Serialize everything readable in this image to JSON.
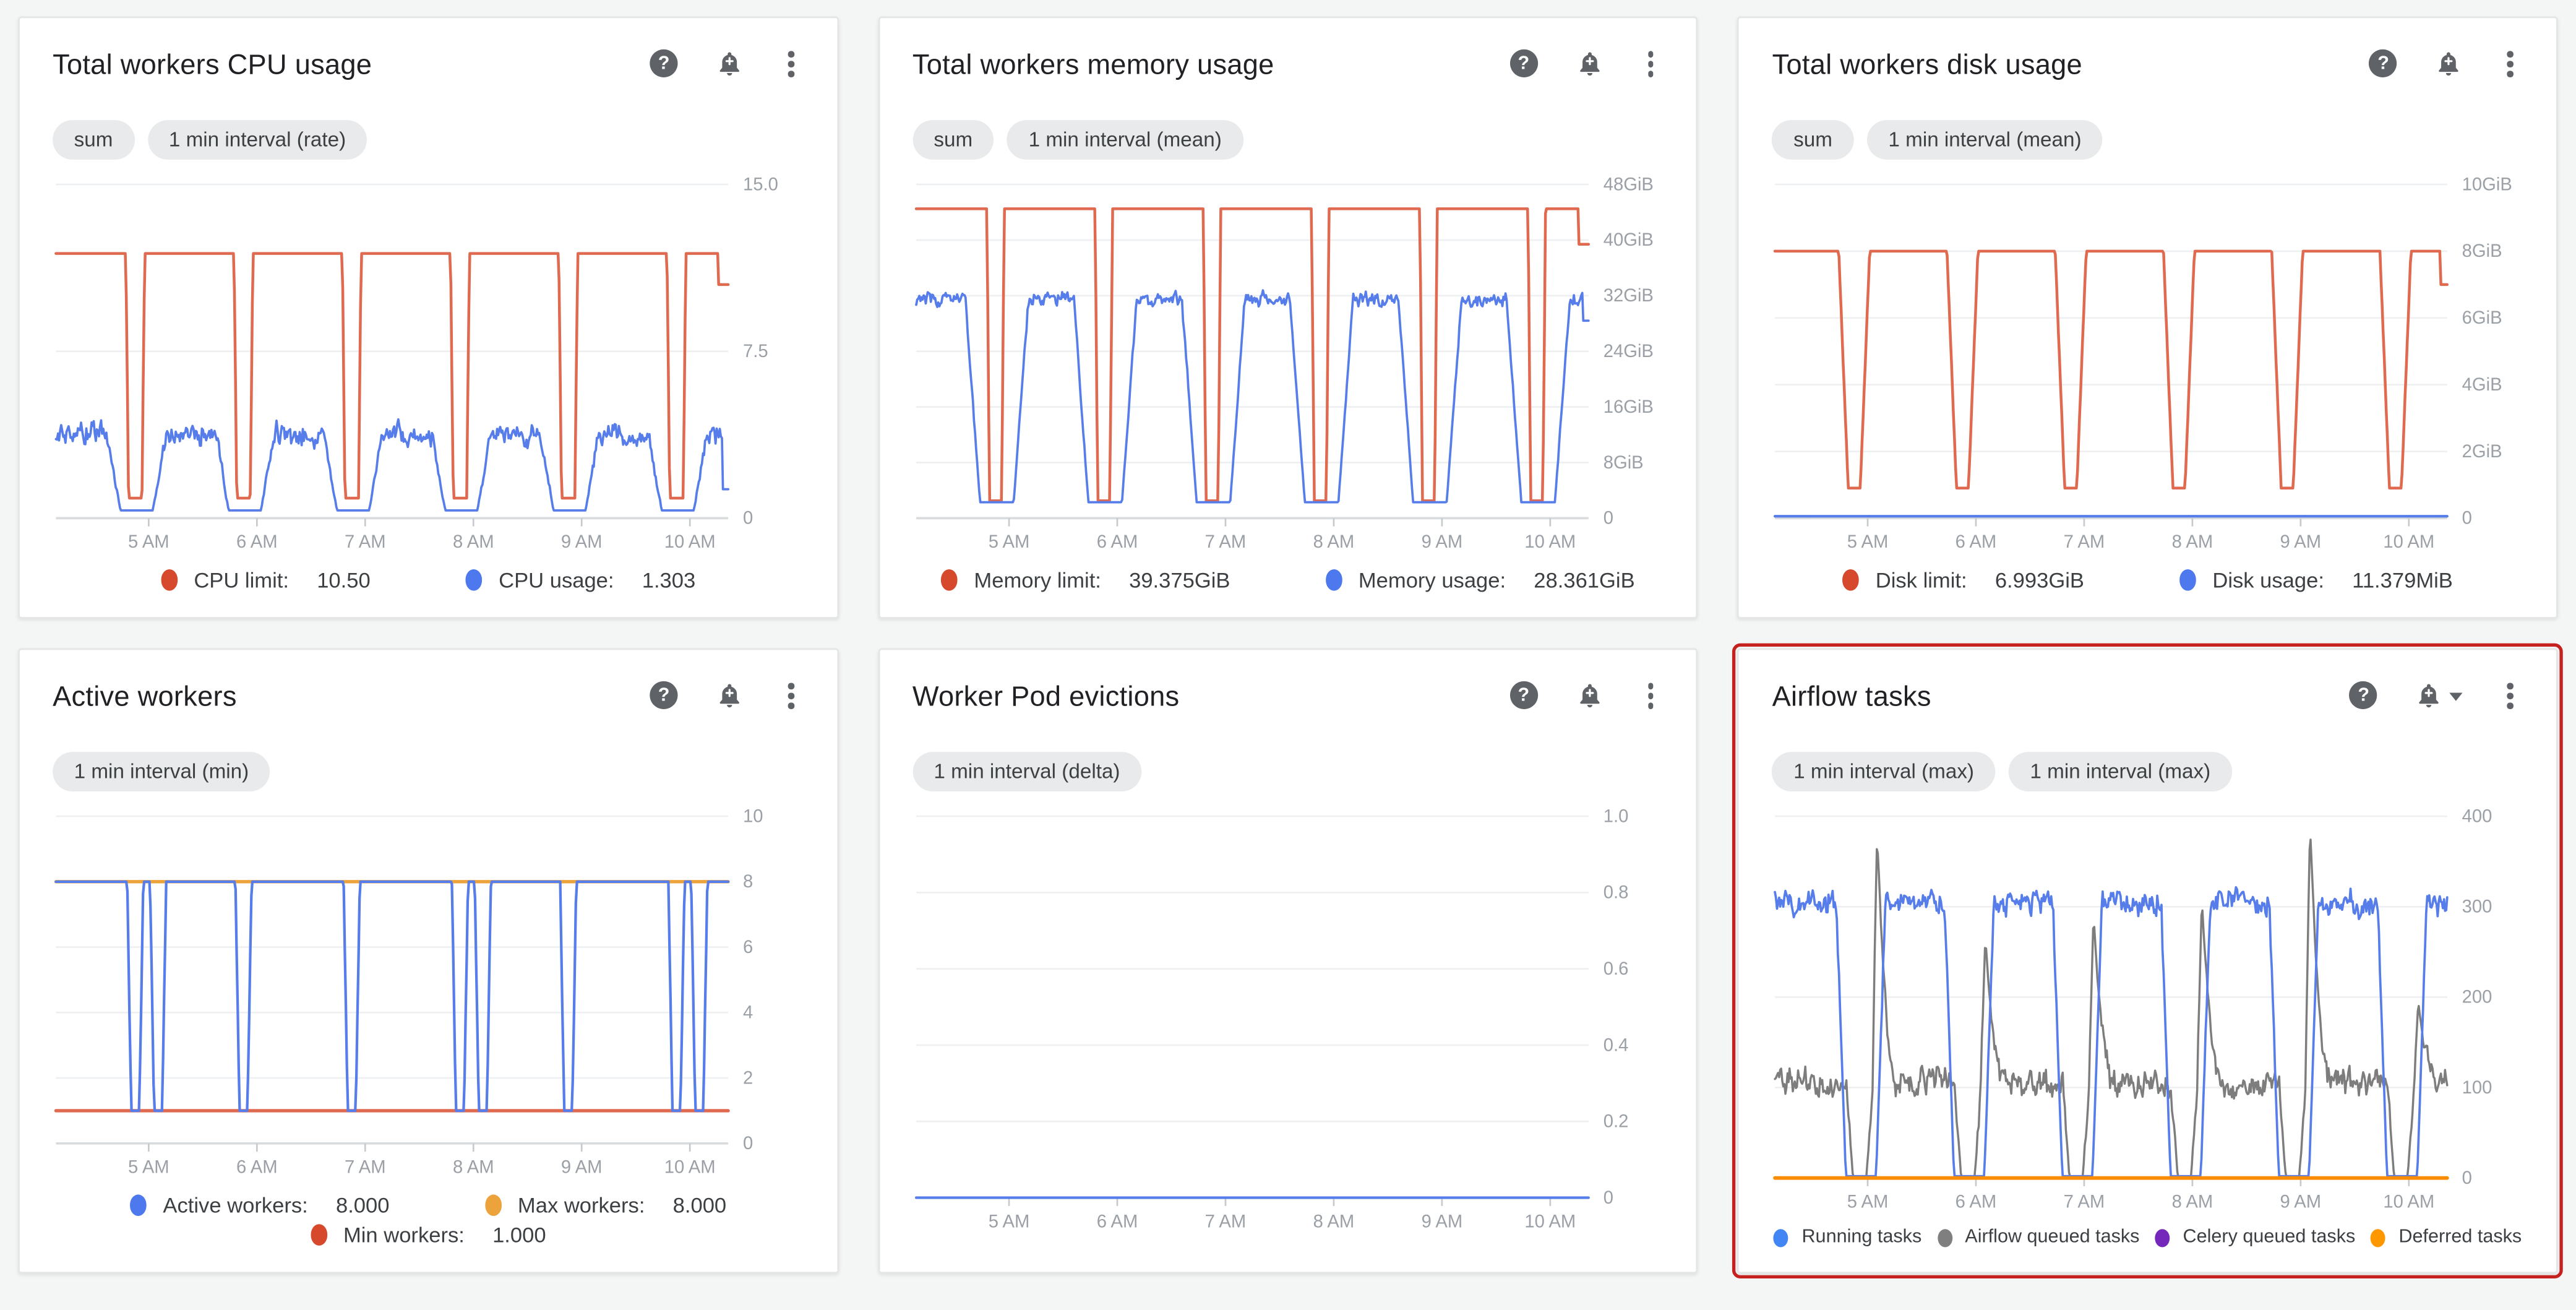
{
  "page": {
    "background": "#f4f5f5",
    "highlight_border_color": "#c5221f"
  },
  "x_axis": {
    "ticks": [
      {
        "f": 0.138,
        "label": "5 AM"
      },
      {
        "f": 0.299,
        "label": "6 AM"
      },
      {
        "f": 0.46,
        "label": "7 AM"
      },
      {
        "f": 0.621,
        "label": "8 AM"
      },
      {
        "f": 0.782,
        "label": "9 AM"
      },
      {
        "f": 0.943,
        "label": "10 AM"
      }
    ]
  },
  "cards": [
    {
      "title": "Total workers CPU usage",
      "chips": [
        "sum",
        "1 min interval (rate)"
      ],
      "header_icons": [
        "help-icon",
        "alert-bell-icon",
        "kebab-menu-icon"
      ],
      "bell_caret": false,
      "highlighted": false,
      "chart_index": 0,
      "legend_rows": [
        [
          {
            "label": "CPU limit:",
            "value": "10.50",
            "color": "#d6492c"
          },
          {
            "label": "CPU usage:",
            "value": "1.303",
            "color": "#4e79ee"
          }
        ]
      ]
    },
    {
      "title": "Total workers memory usage",
      "chips": [
        "sum",
        "1 min interval (mean)"
      ],
      "header_icons": [
        "help-icon",
        "alert-bell-icon",
        "kebab-menu-icon"
      ],
      "bell_caret": false,
      "highlighted": false,
      "chart_index": 1,
      "legend_rows": [
        [
          {
            "label": "Memory limit:",
            "value": "39.375GiB",
            "color": "#d6492c"
          },
          {
            "label": "Memory usage:",
            "value": "28.361GiB",
            "color": "#4e79ee"
          }
        ]
      ]
    },
    {
      "title": "Total workers disk usage",
      "chips": [
        "sum",
        "1 min interval (mean)"
      ],
      "header_icons": [
        "help-icon",
        "alert-bell-icon",
        "kebab-menu-icon"
      ],
      "bell_caret": false,
      "highlighted": false,
      "chart_index": 2,
      "legend_rows": [
        [
          {
            "label": "Disk limit:",
            "value": "6.993GiB",
            "color": "#d6492c"
          },
          {
            "label": "Disk usage:",
            "value": "11.379MiB",
            "color": "#4e79ee"
          }
        ]
      ]
    },
    {
      "title": "Active workers",
      "chips": [
        "1 min interval (min)"
      ],
      "header_icons": [
        "help-icon",
        "alert-bell-icon",
        "kebab-menu-icon"
      ],
      "bell_caret": false,
      "highlighted": false,
      "chart_index": 3,
      "legend_rows": [
        [
          {
            "label": "Active workers:",
            "value": "8.000",
            "color": "#4e79ee"
          },
          {
            "label": "Max workers:",
            "value": "8.000",
            "color": "#eda33c"
          }
        ],
        [
          {
            "label": "Min workers:",
            "value": "1.000",
            "color": "#d6492c"
          }
        ]
      ]
    },
    {
      "title": "Worker Pod evictions",
      "chips": [
        "1 min interval (delta)"
      ],
      "header_icons": [
        "help-icon",
        "alert-bell-icon",
        "kebab-menu-icon"
      ],
      "bell_caret": false,
      "highlighted": false,
      "chart_index": 4,
      "legend_rows": []
    },
    {
      "title": "Airflow tasks",
      "chips": [
        "1 min interval (max)",
        "1 min interval (max)"
      ],
      "header_icons": [
        "help-icon",
        "alert-bell-icon",
        "caret-down-icon",
        "kebab-menu-icon"
      ],
      "bell_caret": true,
      "highlighted": true,
      "chart_index": 5,
      "legend_rows": [
        [
          {
            "label": "Running tasks",
            "value": "",
            "color": "#4285f4"
          },
          {
            "label": "Airflow queued tasks",
            "value": "",
            "color": "#7f7f7f"
          },
          {
            "label": "Celery queued tasks",
            "value": "",
            "color": "#7627bb"
          },
          {
            "label": "Deferred tasks",
            "value": "",
            "color": "#ff9800"
          }
        ]
      ]
    }
  ],
  "chart_data": [
    {
      "type": "line",
      "title": "Total workers CPU usage",
      "ylim": [
        0,
        15
      ],
      "y_ticks": [
        {
          "v": 15,
          "label": "15.0"
        },
        {
          "v": 7.5,
          "label": "7.5"
        },
        {
          "v": 0,
          "label": "0"
        }
      ],
      "x_tick_labels": [
        "5 AM",
        "6 AM",
        "7 AM",
        "8 AM",
        "9 AM",
        "10 AM"
      ],
      "grid": true,
      "legend_position": "bottom",
      "series": [
        {
          "name": "CPU limit",
          "color": "#e06a50",
          "width": 1.7,
          "current": 10.5,
          "pattern": {
            "base": 11.9,
            "dips": [
              0.118,
              0.279,
              0.44,
              0.601,
              0.762,
              0.923
            ],
            "dipWidth": 0.02,
            "dipSlope": 0.004,
            "dipLow": 0.9,
            "end": {
              "at": 0.985,
              "value": 10.5
            }
          }
        },
        {
          "name": "CPU usage",
          "color": "#567de9",
          "width": 1.4,
          "current": 1.303,
          "pattern": {
            "base": 3.8,
            "noise": 0.38,
            "jitter": 0.22,
            "seed": 11,
            "dips": [
              0.12,
              0.281,
              0.442,
              0.603,
              0.764,
              0.925
            ],
            "dipWidth": 0.048,
            "dipSlope": 0.02,
            "dipLow": 0.35,
            "end": {
              "at": 0.992,
              "value": 1.3
            }
          }
        }
      ]
    },
    {
      "type": "line",
      "title": "Total workers memory usage",
      "ylim": [
        0,
        48
      ],
      "y_ticks": [
        {
          "v": 48,
          "label": "48GiB"
        },
        {
          "v": 40,
          "label": "40GiB"
        },
        {
          "v": 32,
          "label": "32GiB"
        },
        {
          "v": 24,
          "label": "24GiB"
        },
        {
          "v": 16,
          "label": "16GiB"
        },
        {
          "v": 8,
          "label": "8GiB"
        },
        {
          "v": 0,
          "label": "0"
        }
      ],
      "x_tick_labels": [
        "5 AM",
        "6 AM",
        "7 AM",
        "8 AM",
        "9 AM",
        "10 AM"
      ],
      "grid": true,
      "legend_position": "bottom",
      "series": [
        {
          "name": "Memory limit",
          "color": "#e06a50",
          "width": 1.7,
          "current": "39.375GiB",
          "pattern": {
            "base": 44.5,
            "dips": [
              0.118,
              0.279,
              0.44,
              0.601,
              0.762,
              0.923
            ],
            "dipWidth": 0.018,
            "dipSlope": 0.004,
            "dipLow": 2.5,
            "end": {
              "at": 0.985,
              "value": 39.4
            }
          }
        },
        {
          "name": "Memory usage",
          "color": "#567de9",
          "width": 1.4,
          "current": "28.361GiB",
          "pattern": {
            "base": 31.5,
            "noise": 0.8,
            "jitter": 0.5,
            "seed": 22,
            "dips": [
              0.12,
              0.281,
              0.442,
              0.603,
              0.764,
              0.925
            ],
            "dipWidth": 0.05,
            "dipSlope": 0.022,
            "dipLow": 2.3,
            "end": {
              "at": 0.992,
              "value": 28.4
            }
          }
        }
      ]
    },
    {
      "type": "line",
      "title": "Total workers disk usage",
      "ylim": [
        0,
        10
      ],
      "y_ticks": [
        {
          "v": 10,
          "label": "10GiB"
        },
        {
          "v": 8,
          "label": "8GiB"
        },
        {
          "v": 6,
          "label": "6GiB"
        },
        {
          "v": 4,
          "label": "4GiB"
        },
        {
          "v": 2,
          "label": "2GiB"
        },
        {
          "v": 0,
          "label": "0"
        }
      ],
      "x_tick_labels": [
        "5 AM",
        "6 AM",
        "7 AM",
        "8 AM",
        "9 AM",
        "10 AM"
      ],
      "grid": true,
      "legend_position": "bottom",
      "series": [
        {
          "name": "Disk limit",
          "color": "#e06a50",
          "width": 1.7,
          "current": "6.993GiB",
          "pattern": {
            "base": 8,
            "dips": [
              0.118,
              0.279,
              0.44,
              0.601,
              0.762,
              0.923
            ],
            "dipWidth": 0.018,
            "dipSlope": 0.014,
            "dipLow": 0.9,
            "end": {
              "at": 0.99,
              "value": 7.0
            }
          }
        },
        {
          "name": "Disk usage",
          "color": "#567de9",
          "width": 1.6,
          "current": "11.379MiB",
          "pattern": {
            "flat": 0.06
          }
        }
      ]
    },
    {
      "type": "line",
      "title": "Active workers",
      "ylim": [
        0,
        10
      ],
      "y_ticks": [
        {
          "v": 10,
          "label": "10"
        },
        {
          "v": 8,
          "label": "8"
        },
        {
          "v": 6,
          "label": "6"
        },
        {
          "v": 4,
          "label": "4"
        },
        {
          "v": 2,
          "label": "2"
        },
        {
          "v": 0,
          "label": "0"
        }
      ],
      "x_tick_labels": [
        "5 AM",
        "6 AM",
        "7 AM",
        "8 AM",
        "9 AM",
        "10 AM"
      ],
      "grid": true,
      "legend_position": "bottom",
      "series": [
        {
          "name": "Max workers",
          "color": "#eda33c",
          "width": 2.0,
          "current": 8.0,
          "pattern": {
            "flat": 8
          }
        },
        {
          "name": "Min workers",
          "color": "#e06a50",
          "width": 2.0,
          "current": 1.0,
          "pattern": {
            "flat": 1
          }
        },
        {
          "name": "Active workers",
          "color": "#567de9",
          "width": 1.6,
          "current": 8.0,
          "pattern": {
            "base": 8,
            "dips": [
              0.118,
              0.152,
              0.279,
              0.44,
              0.601,
              0.635,
              0.762,
              0.923,
              0.957
            ],
            "dipWidth": 0.012,
            "dipSlope": 0.006,
            "dipLow": 1
          }
        }
      ]
    },
    {
      "type": "line",
      "title": "Worker Pod evictions",
      "ylim": [
        0,
        1.0
      ],
      "y_ticks": [
        {
          "v": 1.0,
          "label": "1.0"
        },
        {
          "v": 0.8,
          "label": "0.8"
        },
        {
          "v": 0.6,
          "label": "0.6"
        },
        {
          "v": 0.4,
          "label": "0.4"
        },
        {
          "v": 0.2,
          "label": "0.2"
        },
        {
          "v": 0,
          "label": "0"
        }
      ],
      "x_tick_labels": [
        "5 AM",
        "6 AM",
        "7 AM",
        "8 AM",
        "9 AM",
        "10 AM"
      ],
      "grid": true,
      "legend_position": "none",
      "series": [
        {
          "name": "Evictions",
          "color": "#567de9",
          "width": 1.6,
          "current": 0,
          "pattern": {
            "flat": 0
          }
        }
      ]
    },
    {
      "type": "line",
      "title": "Airflow tasks",
      "ylim": [
        0,
        400
      ],
      "y_ticks": [
        {
          "v": 400,
          "label": "400"
        },
        {
          "v": 300,
          "label": "300"
        },
        {
          "v": 200,
          "label": "200"
        },
        {
          "v": 100,
          "label": "100"
        },
        {
          "v": 0,
          "label": "0"
        }
      ],
      "x_tick_labels": [
        "5 AM",
        "6 AM",
        "7 AM",
        "8 AM",
        "9 AM",
        "10 AM"
      ],
      "grid": true,
      "legend_position": "bottom",
      "series": [
        {
          "name": "Celery queued tasks",
          "color": "#7627bb",
          "width": 1.5,
          "current": 0,
          "pattern": {
            "flat": 0
          }
        },
        {
          "name": "Airflow queued tasks",
          "color": "#7d7d7d",
          "width": 1.3,
          "current": 100,
          "pattern": {
            "base": 105,
            "noise": 13,
            "jitter": 7,
            "seed": 33,
            "dips": [
              0.126,
              0.287,
              0.448,
              0.609,
              0.77,
              0.931
            ],
            "dipWidth": 0.02,
            "dipSlope": 0.01,
            "dipLow": 1,
            "spikes": [
              {
                "c": 0.152,
                "peak": 380
              },
              {
                "c": 0.313,
                "peak": 265
              },
              {
                "c": 0.474,
                "peak": 290
              },
              {
                "c": 0.635,
                "peak": 308
              },
              {
                "c": 0.796,
                "peak": 390
              },
              {
                "c": 0.957,
                "peak": 195
              }
            ],
            "spikeRise": 0.007,
            "spikeFall": 0.03
          }
        },
        {
          "name": "Running tasks",
          "color": "#567de9",
          "width": 1.4,
          "current": 310,
          "pattern": {
            "base": 305,
            "noise": 10,
            "jitter": 7,
            "seed": 44,
            "dips": [
              0.128,
              0.289,
              0.45,
              0.611,
              0.772,
              0.933
            ],
            "dipWidth": 0.045,
            "dipSlope": 0.014,
            "dipLow": 2
          }
        },
        {
          "name": "Deferred tasks",
          "color": "#fb8c00",
          "width": 2.2,
          "current": 0,
          "pattern": {
            "flat": 0
          }
        }
      ]
    }
  ]
}
